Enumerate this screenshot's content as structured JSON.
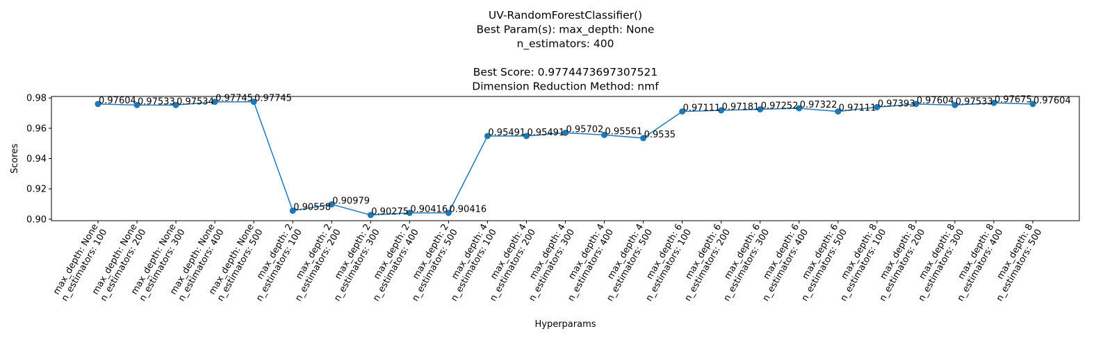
{
  "chart_data": {
    "type": "line",
    "title_lines": [
      "UV-RandomForestClassifier()",
      "Best Param(s): max_depth: None",
      "n_estimators: 400",
      "",
      "Best Score: 0.9774473697307521",
      "Dimension Reduction Method: nmf"
    ],
    "xlabel": "Hyperparams",
    "ylabel": "Scores",
    "ylim": [
      0.899,
      0.981
    ],
    "yticks": [
      "0.90",
      "0.92",
      "0.94",
      "0.96",
      "0.98"
    ],
    "grid": false,
    "color": "#1f77b4",
    "categories": [
      [
        "max_depth: None",
        "n_estimators: 100"
      ],
      [
        "max_depth: None",
        "n_estimators: 200"
      ],
      [
        "max_depth: None",
        "n_estimators: 300"
      ],
      [
        "max_depth: None",
        "n_estimators: 400"
      ],
      [
        "max_depth: None",
        "n_estimators: 500"
      ],
      [
        "max_depth: 2",
        "n_estimators: 100"
      ],
      [
        "max_depth: 2",
        "n_estimators: 200"
      ],
      [
        "max_depth: 2",
        "n_estimators: 300"
      ],
      [
        "max_depth: 2",
        "n_estimators: 400"
      ],
      [
        "max_depth: 2",
        "n_estimators: 500"
      ],
      [
        "max_depth: 4",
        "n_estimators: 100"
      ],
      [
        "max_depth: 4",
        "n_estimators: 200"
      ],
      [
        "max_depth: 4",
        "n_estimators: 300"
      ],
      [
        "max_depth: 4",
        "n_estimators: 400"
      ],
      [
        "max_depth: 4",
        "n_estimators: 500"
      ],
      [
        "max_depth: 6",
        "n_estimators: 100"
      ],
      [
        "max_depth: 6",
        "n_estimators: 200"
      ],
      [
        "max_depth: 6",
        "n_estimators: 300"
      ],
      [
        "max_depth: 6",
        "n_estimators: 400"
      ],
      [
        "max_depth: 6",
        "n_estimators: 500"
      ],
      [
        "max_depth: 8",
        "n_estimators: 100"
      ],
      [
        "max_depth: 8",
        "n_estimators: 200"
      ],
      [
        "max_depth: 8",
        "n_estimators: 300"
      ],
      [
        "max_depth: 8",
        "n_estimators: 400"
      ],
      [
        "max_depth: 8",
        "n_estimators: 500"
      ]
    ],
    "values": [
      0.97604,
      0.97533,
      0.97534,
      0.97745,
      0.97745,
      0.90558,
      0.90979,
      0.90275,
      0.90416,
      0.90416,
      0.95491,
      0.95491,
      0.95702,
      0.95561,
      0.9535,
      0.97111,
      0.97181,
      0.97252,
      0.97322,
      0.97111,
      0.97393,
      0.97604,
      0.97533,
      0.97675,
      0.97604
    ],
    "data_labels": [
      "0.97604",
      "0.97533",
      "0.97534",
      "0.97745",
      "0.97745",
      "0.90558",
      "0.90979",
      "0.90275",
      "0.90416",
      "0.90416",
      "0.95491",
      "0.95491",
      "0.95702",
      "0.95561",
      "0.9535",
      "0.97111",
      "0.97181",
      "0.97252",
      "0.97322",
      "0.97111",
      "0.97393",
      "0.97604",
      "0.97533",
      "0.97675",
      "0.97604"
    ]
  }
}
